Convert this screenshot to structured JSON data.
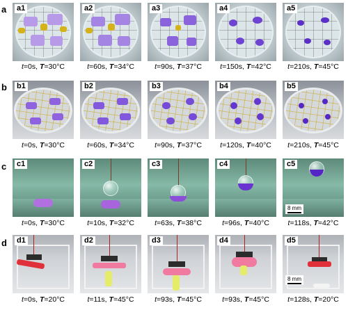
{
  "rows": [
    {
      "label": "a",
      "panels": [
        {
          "tag": "a1",
          "caption": {
            "t": "0s",
            "T": "30°C"
          }
        },
        {
          "tag": "a2",
          "caption": {
            "t": "60s",
            "T": "34°C"
          }
        },
        {
          "tag": "a3",
          "caption": {
            "t": "90s",
            "T": "37°C"
          }
        },
        {
          "tag": "a4",
          "caption": {
            "t": "150s",
            "T": "42°C"
          }
        },
        {
          "tag": "a5",
          "caption": {
            "t": "210s",
            "T": "45°C"
          }
        }
      ]
    },
    {
      "label": "b",
      "panels": [
        {
          "tag": "b1",
          "caption": {
            "t": "0s",
            "T": "30°C"
          }
        },
        {
          "tag": "b2",
          "caption": {
            "t": "60s",
            "T": "34°C"
          }
        },
        {
          "tag": "b3",
          "caption": {
            "t": "90s",
            "T": "37°C"
          }
        },
        {
          "tag": "b4",
          "caption": {
            "t": "120s",
            "T": "40°C"
          }
        },
        {
          "tag": "b5",
          "caption": {
            "t": "210s",
            "T": "45°C"
          }
        }
      ]
    },
    {
      "label": "c",
      "panels": [
        {
          "tag": "c1",
          "caption": {
            "t": "0s",
            "T": "30°C"
          }
        },
        {
          "tag": "c2",
          "caption": {
            "t": "10s",
            "T": "32°C"
          }
        },
        {
          "tag": "c3",
          "caption": {
            "t": "63s",
            "T": "38°C"
          }
        },
        {
          "tag": "c4",
          "caption": {
            "t": "96s",
            "T": "40°C"
          }
        },
        {
          "tag": "c5",
          "caption": {
            "t": "118s",
            "T": "42°C"
          }
        }
      ]
    },
    {
      "label": "d",
      "panels": [
        {
          "tag": "d1",
          "caption": {
            "t": "0s",
            "T": "20°C"
          }
        },
        {
          "tag": "d2",
          "caption": {
            "t": "11s",
            "T": "45°C"
          }
        },
        {
          "tag": "d3",
          "caption": {
            "t": "93s",
            "T": "45°C"
          }
        },
        {
          "tag": "d4",
          "caption": {
            "t": "93s",
            "T": "45°C"
          }
        },
        {
          "tag": "d5",
          "caption": {
            "t": "128s",
            "T": "20°C"
          }
        }
      ]
    }
  ],
  "caption_labels": {
    "time_symbol": "t",
    "temp_symbol": "T"
  },
  "scalebars": {
    "c5": "8 mm",
    "d5": "8 mm"
  },
  "colors": {
    "purple": "#7a4fd6",
    "yellow": "#d4b21a",
    "water_green": "#86b9a7",
    "red_strip": "#e0303a"
  }
}
